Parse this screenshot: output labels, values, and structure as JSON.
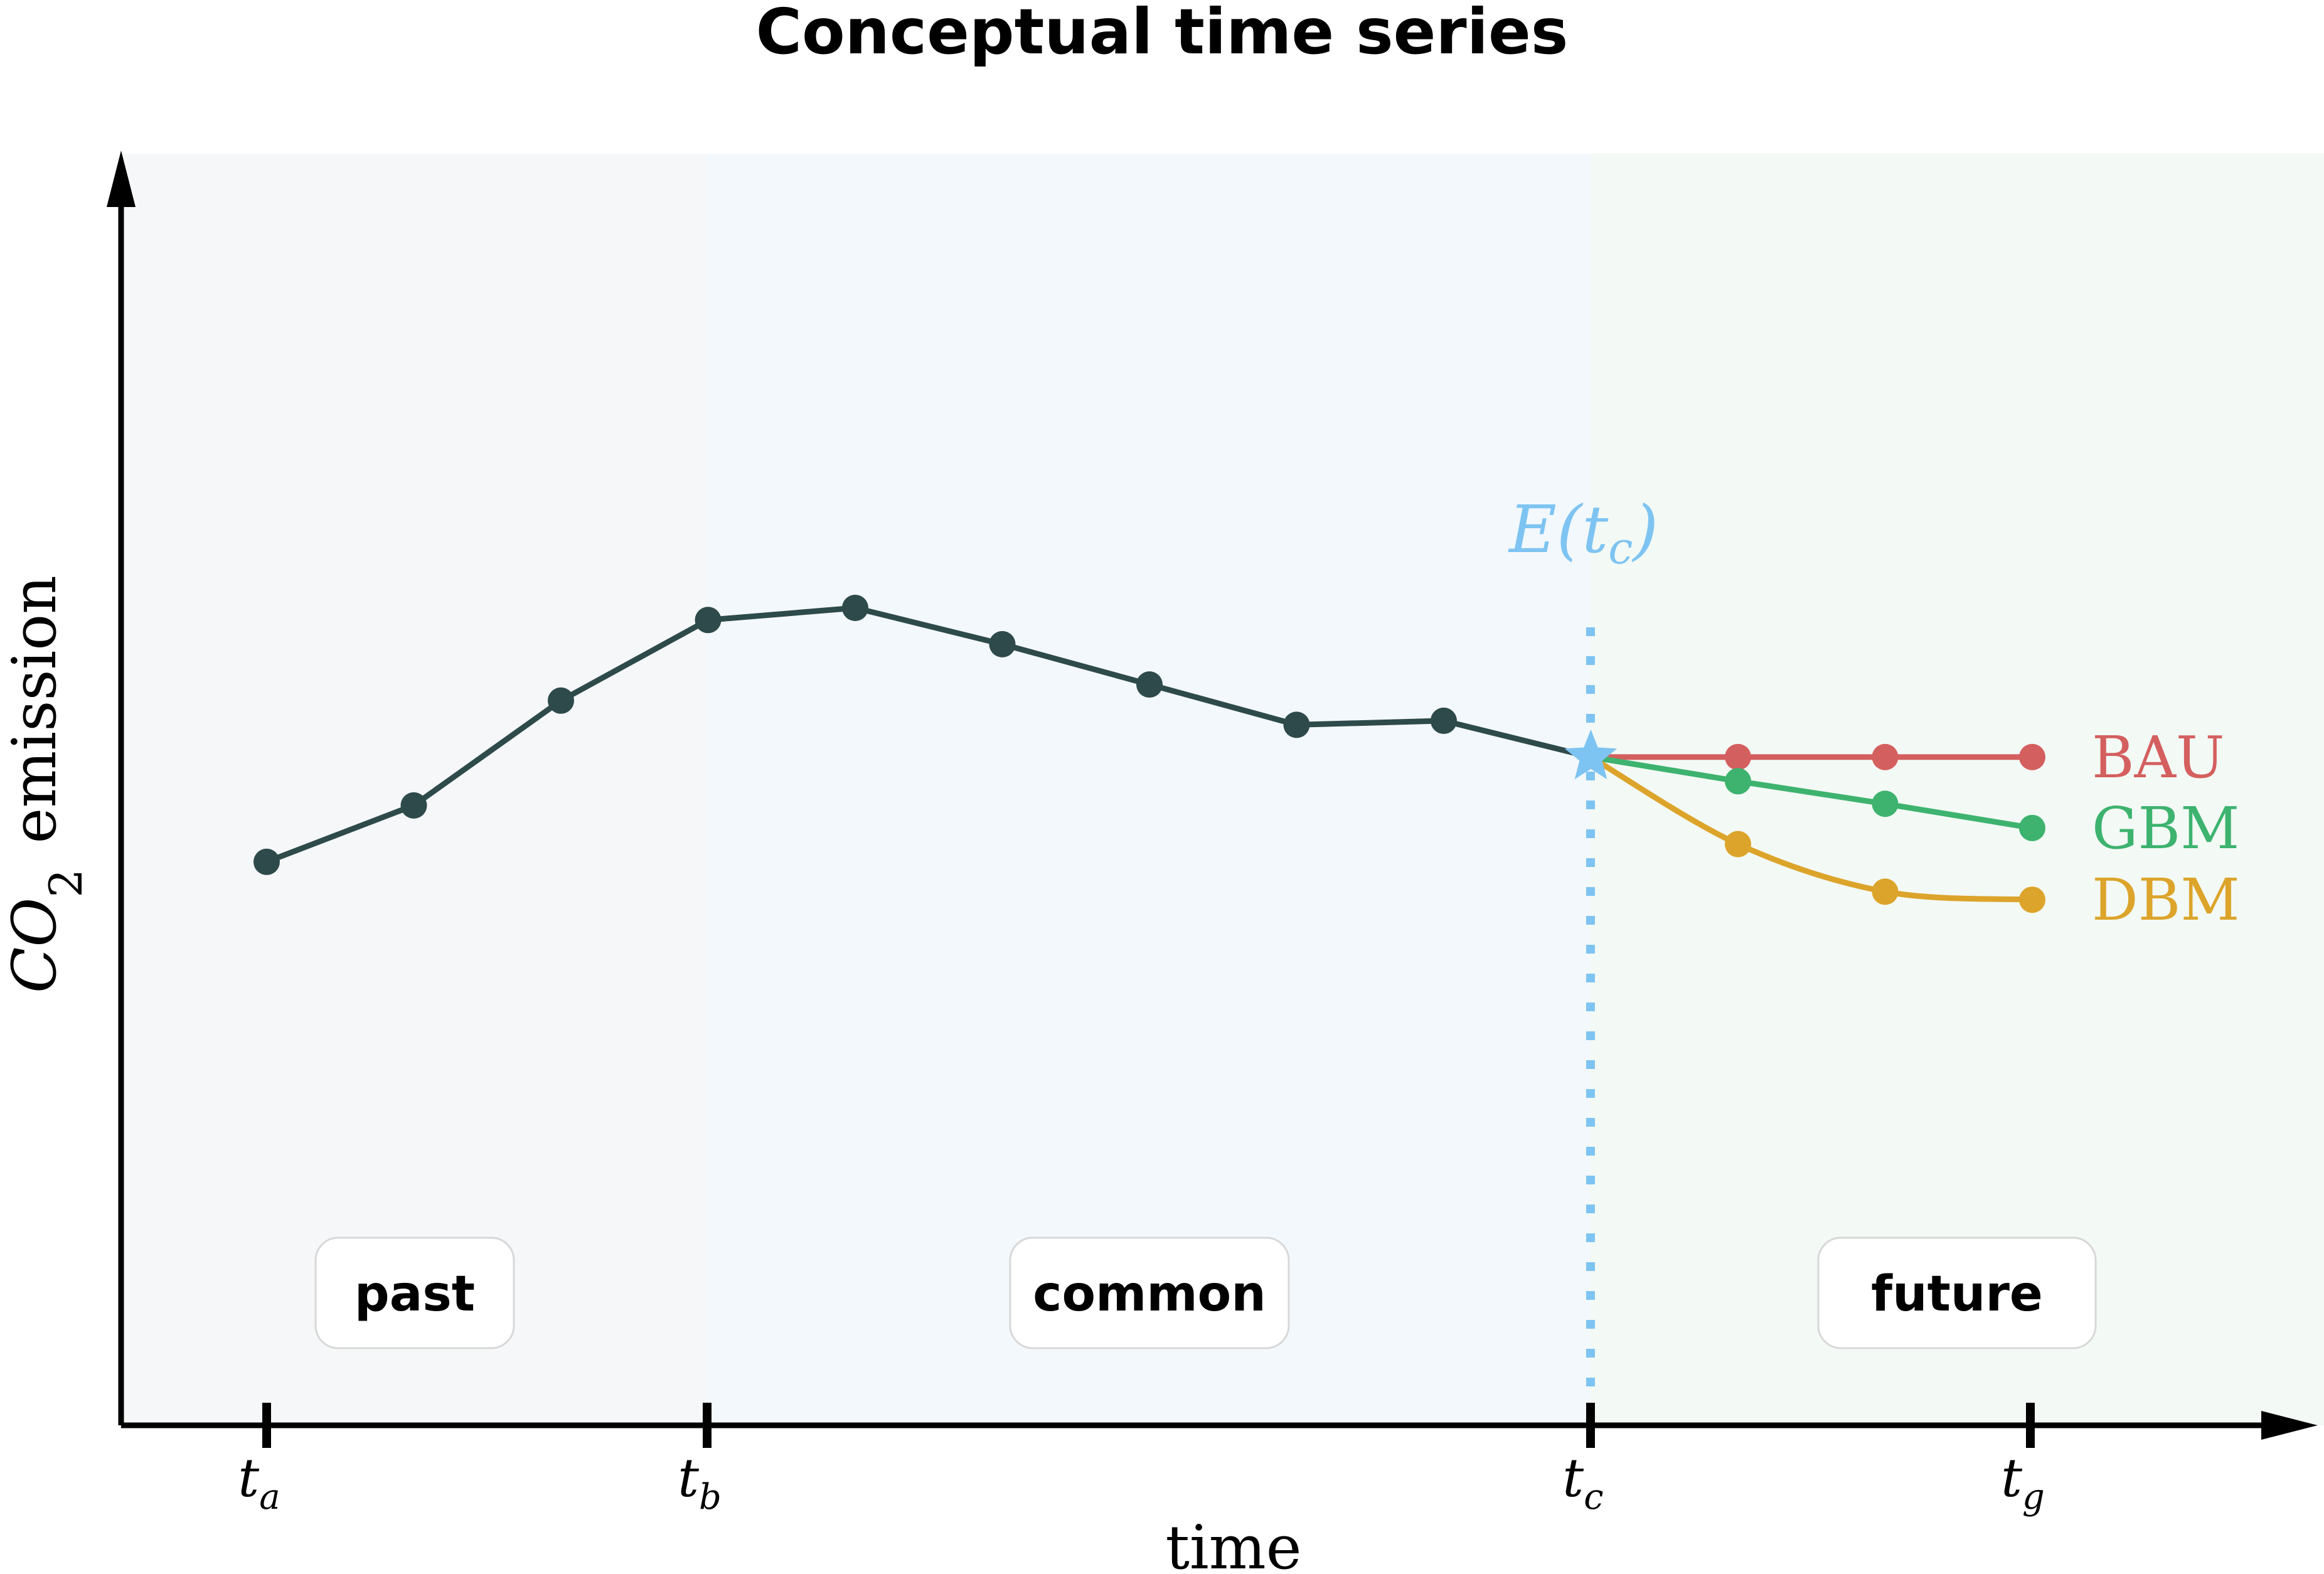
{
  "title": "Conceptual time series",
  "axes": {
    "xlabel": "time",
    "ylabel_main": "CO",
    "ylabel_sub": "2",
    "ylabel_rest": " emission"
  },
  "regions": [
    {
      "label": "past",
      "color": "#f5f7f9"
    },
    {
      "label": "common",
      "color": "#f3f8fc"
    },
    {
      "label": "future",
      "color": "#f3f9f4"
    }
  ],
  "ticks": [
    {
      "main": "t",
      "sub": "a"
    },
    {
      "main": "t",
      "sub": "b"
    },
    {
      "main": "t",
      "sub": "c"
    },
    {
      "main": "t",
      "sub": "g"
    }
  ],
  "annotation": {
    "marker": "star",
    "main": "E(t",
    "sub": "c",
    "close": ")",
    "color": "#7ec4f2"
  },
  "chart_data": {
    "type": "line",
    "x": [
      0,
      1,
      2,
      3,
      4,
      5,
      6,
      7,
      8,
      9
    ],
    "values": [
      3.2,
      3.9,
      5.2,
      6.2,
      6.35,
      5.9,
      5.4,
      4.9,
      4.95,
      4.5
    ],
    "xlim": [
      -1,
      13.5
    ],
    "ylim": [
      -1.1,
      11
    ],
    "series": [
      {
        "name": "BAU",
        "color": "#d45f5f",
        "x": [
          9,
          10,
          11,
          12
        ],
        "values": [
          4.5,
          4.5,
          4.5,
          4.5
        ]
      },
      {
        "name": "GBM",
        "color": "#3db36f",
        "x": [
          9,
          10,
          11,
          12
        ],
        "values": [
          4.5,
          4.2,
          3.92,
          3.62
        ]
      },
      {
        "name": "DBM",
        "color": "#dca42a",
        "x": [
          9,
          10,
          11,
          12
        ],
        "values": [
          4.5,
          3.42,
          2.83,
          2.73
        ]
      }
    ],
    "line_color": "#2e4a4a",
    "grid": false
  }
}
